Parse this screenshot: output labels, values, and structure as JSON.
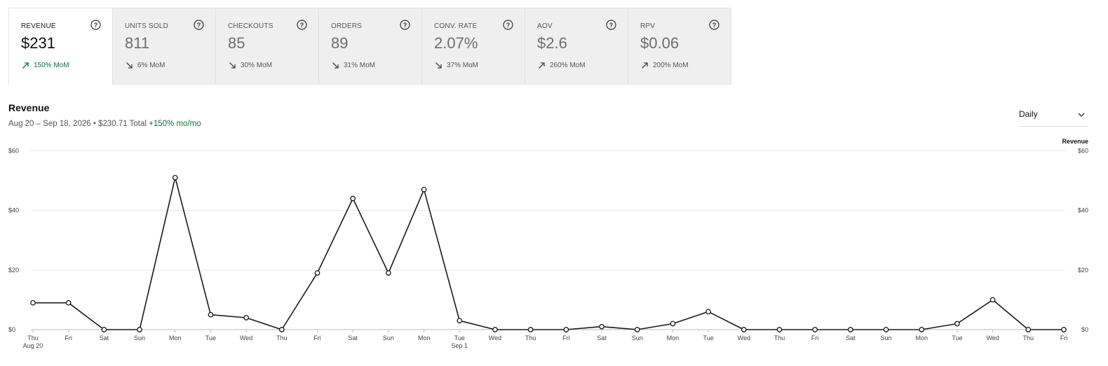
{
  "metrics": [
    {
      "label": "REVENUE",
      "value": "$231",
      "change": "150% MoM",
      "direction": "up"
    },
    {
      "label": "UNITS SOLD",
      "value": "811",
      "change": "6% MoM",
      "direction": "down"
    },
    {
      "label": "CHECKOUTS",
      "value": "85",
      "change": "30% MoM",
      "direction": "down"
    },
    {
      "label": "ORDERS",
      "value": "89",
      "change": "31% MoM",
      "direction": "down"
    },
    {
      "label": "CONV. RATE",
      "value": "2.07%",
      "change": "37% MoM",
      "direction": "down"
    },
    {
      "label": "AOV",
      "value": "$2.6",
      "change": "260% MoM",
      "direction": "up"
    },
    {
      "label": "RPV",
      "value": "$0.06",
      "change": "200% MoM",
      "direction": "up"
    }
  ],
  "active_metric": "REVENUE",
  "chart_header": {
    "title": "Revenue",
    "date_range": "Aug 20 – Sep 18, 2026",
    "total": "$230.71 Total",
    "change": "+150% mo/mo"
  },
  "granularity": {
    "selected": "Daily"
  },
  "colors": {
    "positive": "#12703f",
    "line": "#1a1a1a",
    "grid": "#e6e6e6"
  },
  "chart_data": {
    "type": "line",
    "title": "Revenue",
    "legend": "Revenue",
    "legend_position": "top-right",
    "categories": [
      "Thu",
      "Fri",
      "Sat",
      "Sun",
      "Mon",
      "Tue",
      "Wed",
      "Thu",
      "Fri",
      "Sat",
      "Sun",
      "Mon",
      "Tue",
      "Wed",
      "Thu",
      "Fri",
      "Sat",
      "Sun",
      "Mon",
      "Tue",
      "Wed",
      "Thu",
      "Fri",
      "Sat",
      "Sun",
      "Mon",
      "Tue",
      "Wed",
      "Thu",
      "Fri"
    ],
    "secondary_labels": {
      "0": "Aug 20",
      "12": "Sep 1"
    },
    "series": [
      {
        "name": "Revenue",
        "values": [
          9,
          9,
          0,
          0,
          51,
          5,
          4,
          0,
          19,
          44,
          19,
          47,
          3,
          0,
          0,
          0,
          1,
          0,
          2,
          6,
          0,
          0,
          0,
          0,
          0,
          0,
          2,
          10,
          0,
          0
        ]
      }
    ],
    "y_ticks": [
      "$0",
      "$20",
      "$40",
      "$60"
    ],
    "ylim": [
      0,
      60
    ],
    "grid": true
  }
}
